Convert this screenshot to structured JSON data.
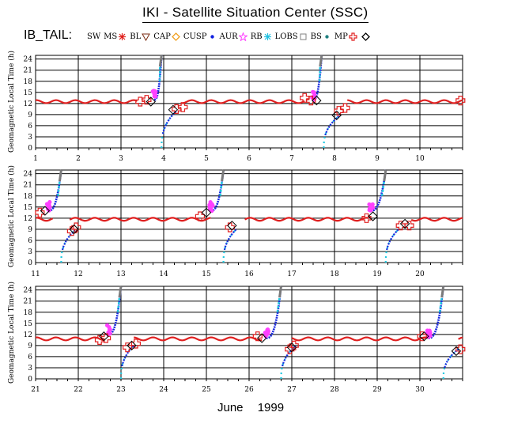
{
  "header": {
    "title": "IKI - Satellite Situation Center (SSC)",
    "mission": "IB_TAIL:",
    "month": "June",
    "year": "1999"
  },
  "legend": [
    {
      "label": "SW",
      "symbol": "none",
      "color": "#000000"
    },
    {
      "label": "MS",
      "symbol": "asterisk",
      "color": "#e0201c"
    },
    {
      "label": "BL",
      "symbol": "triangle-down",
      "color": "#7a2a10"
    },
    {
      "label": "CAP",
      "symbol": "diamond-orange",
      "color": "#f0a020"
    },
    {
      "label": "CUSP",
      "symbol": "dot",
      "color": "#1020e0"
    },
    {
      "label": "AUR",
      "symbol": "star",
      "color": "#ff40ff"
    },
    {
      "label": "RB",
      "symbol": "asterisk-cyan",
      "color": "#20c0e0"
    },
    {
      "label": "LOBS",
      "symbol": "square",
      "color": "#808080"
    },
    {
      "label": "BS",
      "symbol": "dot",
      "color": "#208080"
    },
    {
      "label": "MP",
      "symbol": "plus",
      "color": "#e02020"
    },
    {
      "label": "",
      "symbol": "diamond",
      "color": "#000000"
    }
  ],
  "colors": {
    "magnetosheath": "#e02020",
    "plasma_sheet": "#1a2ae0",
    "aurora": "#ff40ff",
    "radiation_belt": "#20c8e0",
    "lobes": "#7a7a7a"
  },
  "chart_data": [
    {
      "type": "line",
      "ylabel": "Geomagnetic Local Time (h)",
      "xlim": [
        1,
        11
      ],
      "ylim": [
        0,
        25
      ],
      "yticks": [
        0,
        3,
        6,
        9,
        12,
        15,
        18,
        21,
        24
      ],
      "xtick_labels": [
        "1",
        "2",
        "3",
        "4",
        "5",
        "6",
        "7",
        "8",
        "9",
        "10"
      ],
      "grid": true,
      "magnetosheath": {
        "x": [
          1.0,
          3.4,
          4.4,
          7.3,
          8.3,
          11.0
        ],
        "mean": 12.5,
        "amplitude": 0.4
      },
      "outbound_passes": [
        {
          "start": 3.78,
          "end": 3.95,
          "y_start": 13.0,
          "y_end": 25
        },
        {
          "start": 7.5,
          "end": 7.7,
          "y_start": 13.0,
          "y_end": 25
        }
      ],
      "inbound_passes": [
        {
          "start": 3.95,
          "end": 4.3,
          "y_start": 0,
          "y_end": 10
        },
        {
          "start": 7.75,
          "end": 8.15,
          "y_start": 0,
          "y_end": 9
        }
      ],
      "magnetopause_crossings": [
        {
          "x": 3.45,
          "y": 12.5
        },
        {
          "x": 3.6,
          "y": 13.0
        },
        {
          "x": 4.3,
          "y": 10.5
        },
        {
          "x": 4.45,
          "y": 11.0
        },
        {
          "x": 7.3,
          "y": 13.5
        },
        {
          "x": 7.45,
          "y": 12.8
        },
        {
          "x": 8.1,
          "y": 10.0
        },
        {
          "x": 8.25,
          "y": 10.8
        },
        {
          "x": 10.95,
          "y": 12.8
        }
      ],
      "bow_shock_crossings": [
        {
          "x": 3.7,
          "y": 12.5
        },
        {
          "x": 4.22,
          "y": 10.3
        },
        {
          "x": 7.58,
          "y": 12.8
        },
        {
          "x": 8.05,
          "y": 8.8
        }
      ]
    },
    {
      "type": "line",
      "ylabel": "Geomagnetic Local Time (h)",
      "xlim": [
        11,
        21
      ],
      "ylim": [
        0,
        25
      ],
      "yticks": [
        0,
        3,
        6,
        9,
        12,
        15,
        18,
        21,
        24
      ],
      "xtick_labels": [
        "11",
        "12",
        "13",
        "14",
        "15",
        "16",
        "17",
        "18",
        "19",
        "20"
      ],
      "grid": true,
      "magnetosheath": {
        "x": [
          11.0,
          11.4,
          11.8,
          15.1,
          15.9,
          18.8,
          19.8,
          21.0
        ],
        "mean": 11.7,
        "amplitude": 0.4
      },
      "outbound_passes": [
        {
          "start": 11.3,
          "end": 11.6,
          "y_start": 14.0,
          "y_end": 25
        },
        {
          "start": 15.1,
          "end": 15.4,
          "y_start": 14.0,
          "y_end": 25
        },
        {
          "start": 18.85,
          "end": 19.2,
          "y_start": 14.0,
          "y_end": 25
        }
      ],
      "inbound_passes": [
        {
          "start": 11.6,
          "end": 11.95,
          "y_start": 0,
          "y_end": 9
        },
        {
          "start": 15.4,
          "end": 15.7,
          "y_start": 0,
          "y_end": 9
        },
        {
          "start": 19.2,
          "end": 19.5,
          "y_start": 0,
          "y_end": 9
        }
      ],
      "magnetopause_crossings": [
        {
          "x": 11.1,
          "y": 13.5
        },
        {
          "x": 11.85,
          "y": 8.5
        },
        {
          "x": 11.95,
          "y": 9.5
        },
        {
          "x": 14.85,
          "y": 12.5
        },
        {
          "x": 15.55,
          "y": 9.5
        },
        {
          "x": 18.75,
          "y": 12.0
        },
        {
          "x": 19.55,
          "y": 10.0
        },
        {
          "x": 19.75,
          "y": 10.0
        }
      ],
      "bow_shock_crossings": [
        {
          "x": 11.22,
          "y": 14.0
        },
        {
          "x": 11.9,
          "y": 9.0
        },
        {
          "x": 15.0,
          "y": 13.5
        },
        {
          "x": 15.6,
          "y": 10.0
        },
        {
          "x": 18.9,
          "y": 12.5
        },
        {
          "x": 19.65,
          "y": 10.5
        }
      ]
    },
    {
      "type": "line",
      "ylabel": "Geomagnetic Local Time (h)",
      "xlim": [
        21,
        31
      ],
      "ylim": [
        0,
        25
      ],
      "yticks": [
        0,
        3,
        6,
        9,
        12,
        15,
        18,
        21,
        24
      ],
      "xtick_labels": [
        "21",
        "22",
        "23",
        "24",
        "25",
        "26",
        "27",
        "28",
        "29",
        "30"
      ],
      "grid": true,
      "magnetosheath": {
        "x": [
          21.0,
          22.6,
          23.3,
          26.3,
          27.0,
          30.2,
          30.9,
          31.0
        ],
        "mean": 10.8,
        "amplitude": 0.4
      },
      "outbound_passes": [
        {
          "start": 22.7,
          "end": 23.0,
          "y_start": 12.0,
          "y_end": 25
        },
        {
          "start": 26.4,
          "end": 26.75,
          "y_start": 11.0,
          "y_end": 25
        },
        {
          "start": 30.2,
          "end": 30.55,
          "y_start": 11.0,
          "y_end": 25
        }
      ],
      "inbound_passes": [
        {
          "start": 23.0,
          "end": 23.3,
          "y_start": 0,
          "y_end": 9
        },
        {
          "start": 26.75,
          "end": 27.1,
          "y_start": 0,
          "y_end": 9
        },
        {
          "start": 30.55,
          "end": 30.9,
          "y_start": 0,
          "y_end": 8
        }
      ],
      "magnetopause_crossings": [
        {
          "x": 22.5,
          "y": 10.5
        },
        {
          "x": 22.65,
          "y": 11.0
        },
        {
          "x": 23.15,
          "y": 8.5
        },
        {
          "x": 23.35,
          "y": 9.5
        },
        {
          "x": 26.2,
          "y": 11.5
        },
        {
          "x": 26.95,
          "y": 8.0
        },
        {
          "x": 27.05,
          "y": 9.0
        },
        {
          "x": 30.05,
          "y": 11.5
        },
        {
          "x": 30.95,
          "y": 8.0
        }
      ],
      "bow_shock_crossings": [
        {
          "x": 22.6,
          "y": 11.5
        },
        {
          "x": 23.25,
          "y": 9.0
        },
        {
          "x": 26.3,
          "y": 11.0
        },
        {
          "x": 27.0,
          "y": 8.5
        },
        {
          "x": 30.1,
          "y": 11.5
        },
        {
          "x": 30.85,
          "y": 7.5
        }
      ]
    }
  ]
}
